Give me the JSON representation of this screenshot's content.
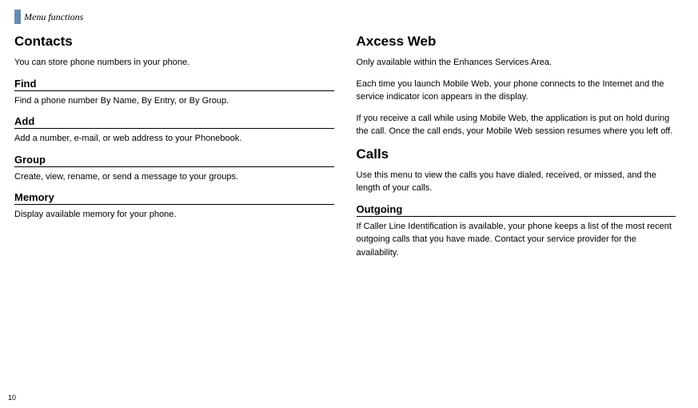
{
  "header": {
    "title": "Menu functions"
  },
  "left": {
    "section1": {
      "title": "Contacts",
      "intro": "You can store phone numbers in your phone.",
      "find": {
        "heading": "Find",
        "text": "Find a phone number By Name, By Entry, or By Group."
      },
      "add": {
        "heading": "Add",
        "text": "Add a number, e-mail, or web address to your Phonebook."
      },
      "group": {
        "heading": "Group",
        "text": "Create, view, rename, or send a message to your groups."
      },
      "memory": {
        "heading": "Memory",
        "text": "Display available memory for your phone."
      }
    }
  },
  "right": {
    "axcess": {
      "title": "Axcess Web",
      "p1": "Only available within the Enhances Services Area.",
      "p2": "Each time you launch Mobile Web, your phone connects to the Internet and the service indicator icon appears in the display.",
      "p3": "If you receive a call while using Mobile Web, the application is put on hold during the call. Once the call ends, your Mobile Web session resumes where you left off."
    },
    "calls": {
      "title": "Calls",
      "intro": "Use this menu to view the calls you have dialed, received, or missed, and the length of your calls.",
      "outgoing": {
        "heading": "Outgoing",
        "text": "If Caller Line Identification is available, your phone keeps a list of the most recent outgoing calls that you have made. Contact your service provider for the availability."
      }
    }
  },
  "page": "10"
}
